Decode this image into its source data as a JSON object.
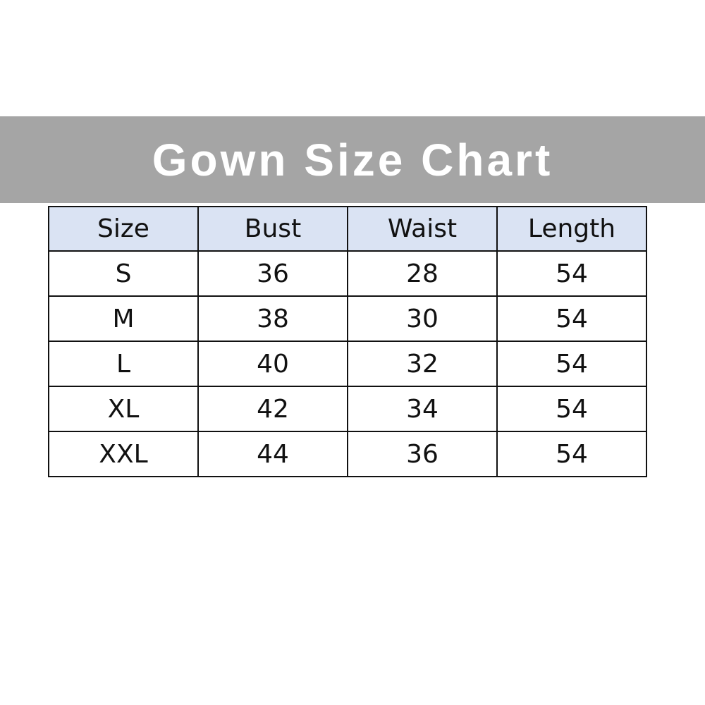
{
  "chart_data": {
    "type": "table",
    "title": "Gown Size Chart",
    "columns": [
      "Size",
      "Bust",
      "Waist",
      "Length"
    ],
    "rows": [
      [
        "S",
        "36",
        "28",
        "54"
      ],
      [
        "M",
        "38",
        "30",
        "54"
      ],
      [
        "L",
        "40",
        "32",
        "54"
      ],
      [
        "XL",
        "42",
        "34",
        "54"
      ],
      [
        "XXL",
        "44",
        "36",
        "54"
      ]
    ],
    "colors": {
      "banner": "#a5a5a5",
      "header_fill": "#dae3f3"
    }
  }
}
